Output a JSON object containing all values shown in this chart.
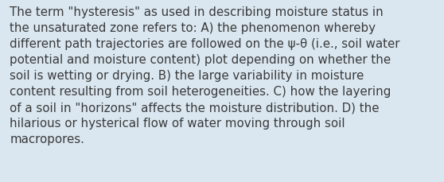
{
  "background_color": "#dae7f0",
  "text_color": "#3a3a3a",
  "font_size": 10.8,
  "figsize": [
    5.58,
    2.3
  ],
  "dpi": 100,
  "lines": [
    "The term \"hysteresis\" as used in describing moisture status in",
    "the unsaturated zone refers to: A) the phenomenon whereby",
    "different path trajectories are followed on the ψ-θ (i.e., soil water",
    "potential and moisture content) plot depending on whether the",
    "soil is wetting or drying. B) the large variability in moisture",
    "content resulting from soil heterogeneities. C) how the layering",
    "of a soil in \"horizons\" affects the moisture distribution. D) the",
    "hilarious or hysterical flow of water moving through soil",
    "macropores."
  ]
}
